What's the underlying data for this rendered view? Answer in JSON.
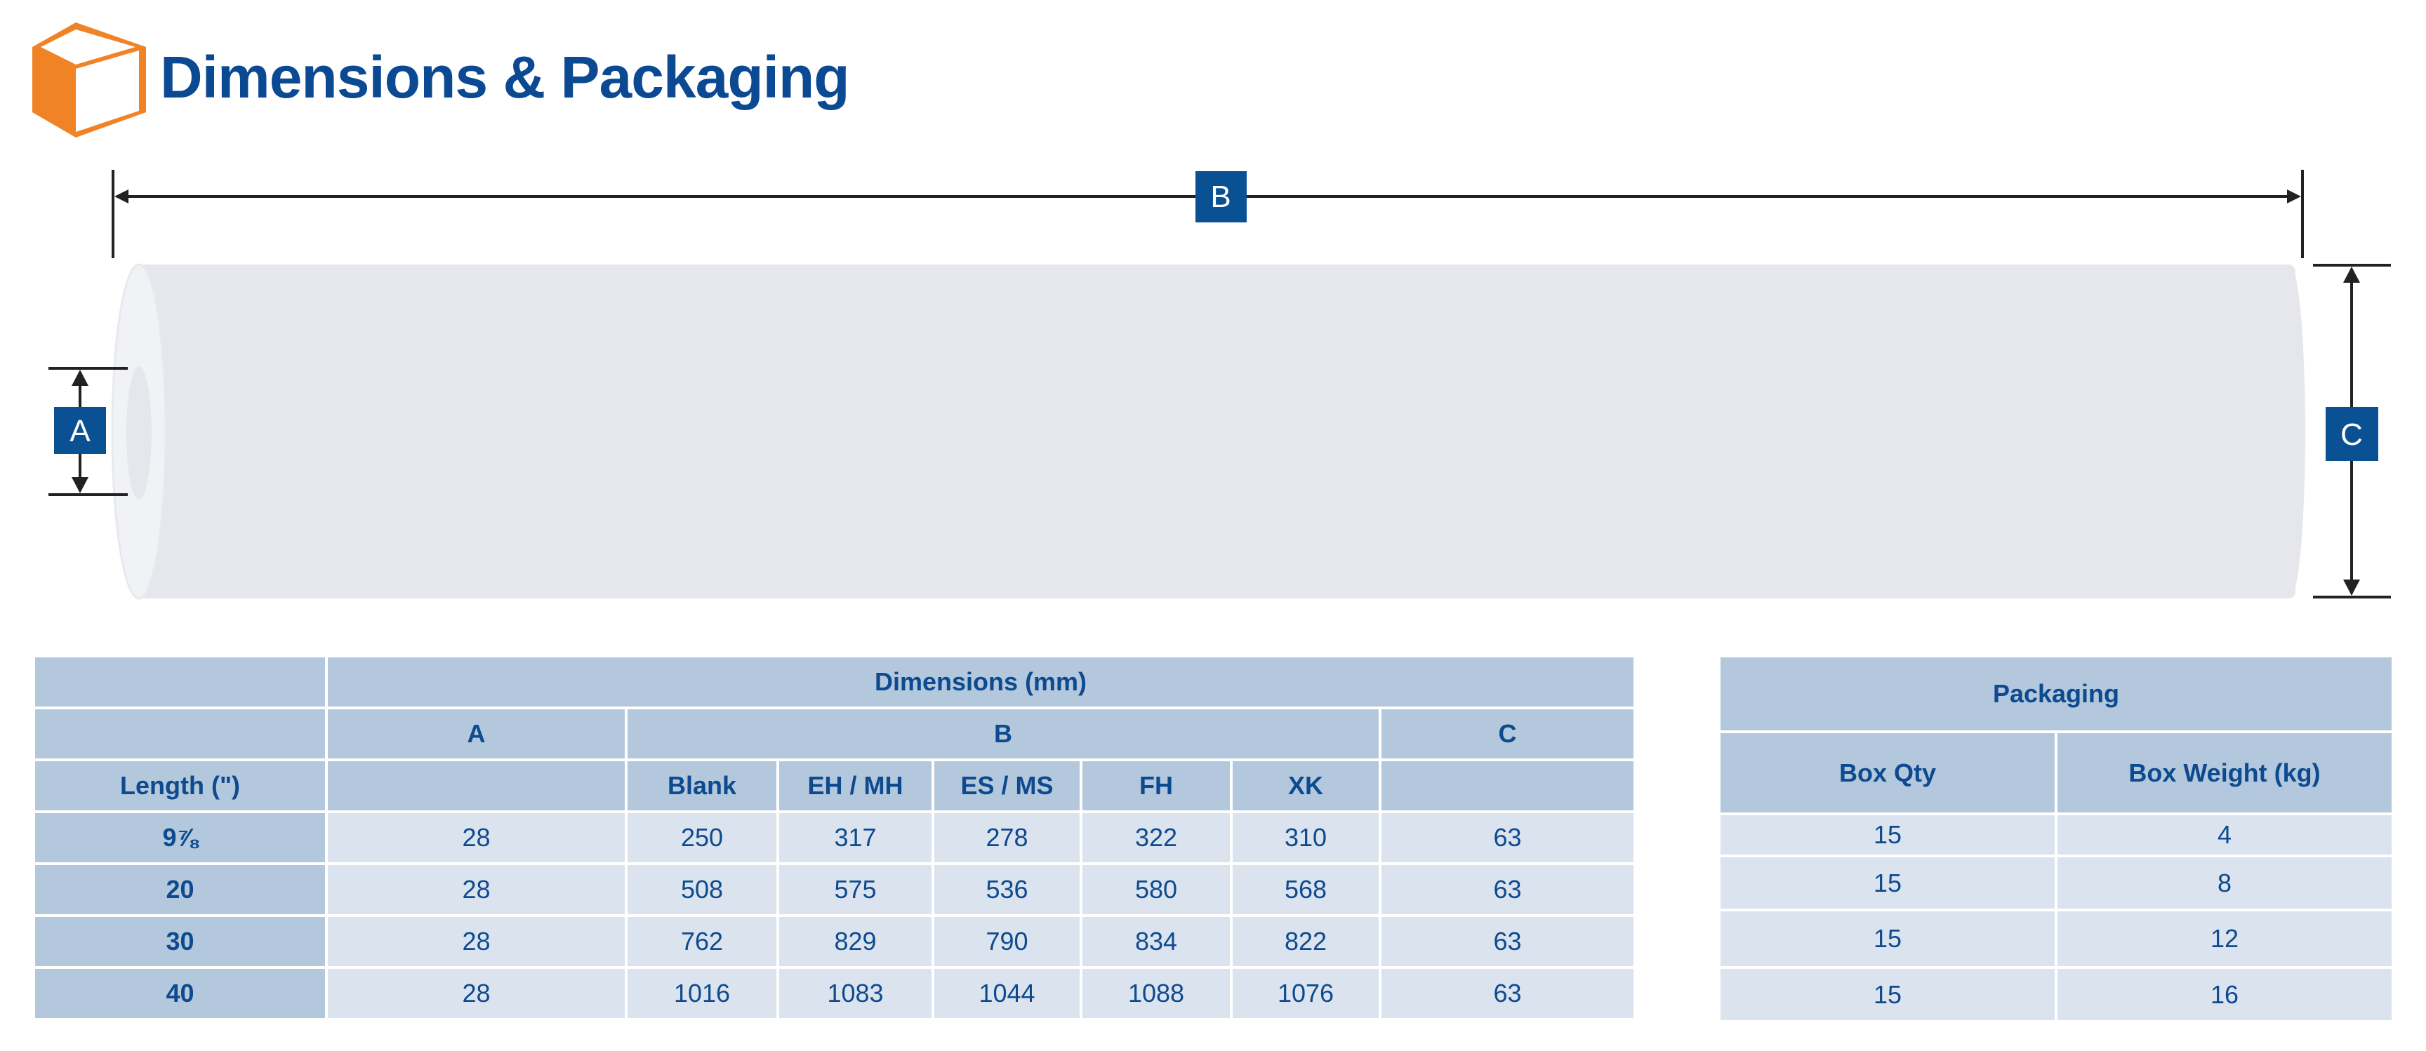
{
  "header": {
    "title": "Dimensions & Packaging",
    "icon": "box-icon"
  },
  "diagram": {
    "label_a": "A",
    "label_b": "B",
    "label_c": "C"
  },
  "colors": {
    "brand_blue": "#0b4a92",
    "label_box": "#0a5194",
    "orange": "#f08326",
    "header_cell": "#b3c8dc",
    "body_cell": "#dbe3ee"
  },
  "dimensions_table": {
    "title": "Dimensions (mm)",
    "group_headers": {
      "a": "A",
      "b": "B",
      "c": "C"
    },
    "row_header": "Length (\")",
    "b_subheaders": [
      "Blank",
      "EH / MH",
      "ES / MS",
      "FH",
      "XK"
    ],
    "rows": [
      {
        "length": "9⅞",
        "a": "28",
        "b": [
          "250",
          "317",
          "278",
          "322",
          "310"
        ],
        "c": "63"
      },
      {
        "length": "20",
        "a": "28",
        "b": [
          "508",
          "575",
          "536",
          "580",
          "568"
        ],
        "c": "63"
      },
      {
        "length": "30",
        "a": "28",
        "b": [
          "762",
          "829",
          "790",
          "834",
          "822"
        ],
        "c": "63"
      },
      {
        "length": "40",
        "a": "28",
        "b": [
          "1016",
          "1083",
          "1044",
          "1088",
          "1076"
        ],
        "c": "63"
      }
    ]
  },
  "packaging_table": {
    "title": "Packaging",
    "headers": [
      "Box Qty",
      "Box Weight (kg)"
    ],
    "rows": [
      [
        "15",
        "4"
      ],
      [
        "15",
        "8"
      ],
      [
        "15",
        "12"
      ],
      [
        "15",
        "16"
      ]
    ]
  }
}
